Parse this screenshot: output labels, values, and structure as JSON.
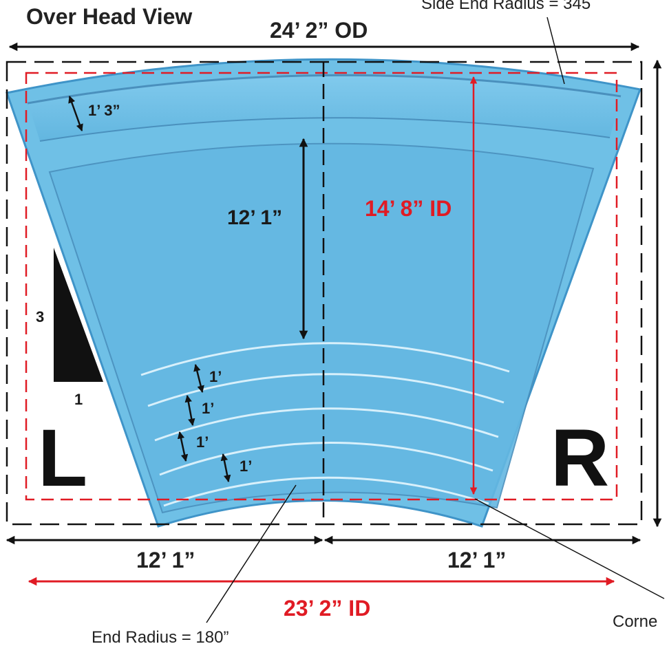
{
  "title": "Over Head View",
  "dimensions": {
    "outer_width": "24’ 2” OD",
    "inner_length": "14’ 8” ID",
    "deep_section": "12’ 1”",
    "bench_width": "1’ 3”",
    "steps": [
      "1’",
      "1’",
      "1’",
      "1’"
    ],
    "left_half": "12’ 1”",
    "right_half": "12’ 1”",
    "inner_width": "23’ 2” ID"
  },
  "slope": {
    "rise": "3",
    "run": "1"
  },
  "sides": {
    "left": "L",
    "right": "R"
  },
  "callouts": {
    "side_end_radius": "Side End Radius = 345",
    "end_radius": "End Radius = 180”",
    "corner": "Corne"
  },
  "colors": {
    "pool": "#6fc0e6",
    "pool_edge": "#3f94c8",
    "inner_dimension": "#e01b24",
    "outline": "#111111"
  }
}
